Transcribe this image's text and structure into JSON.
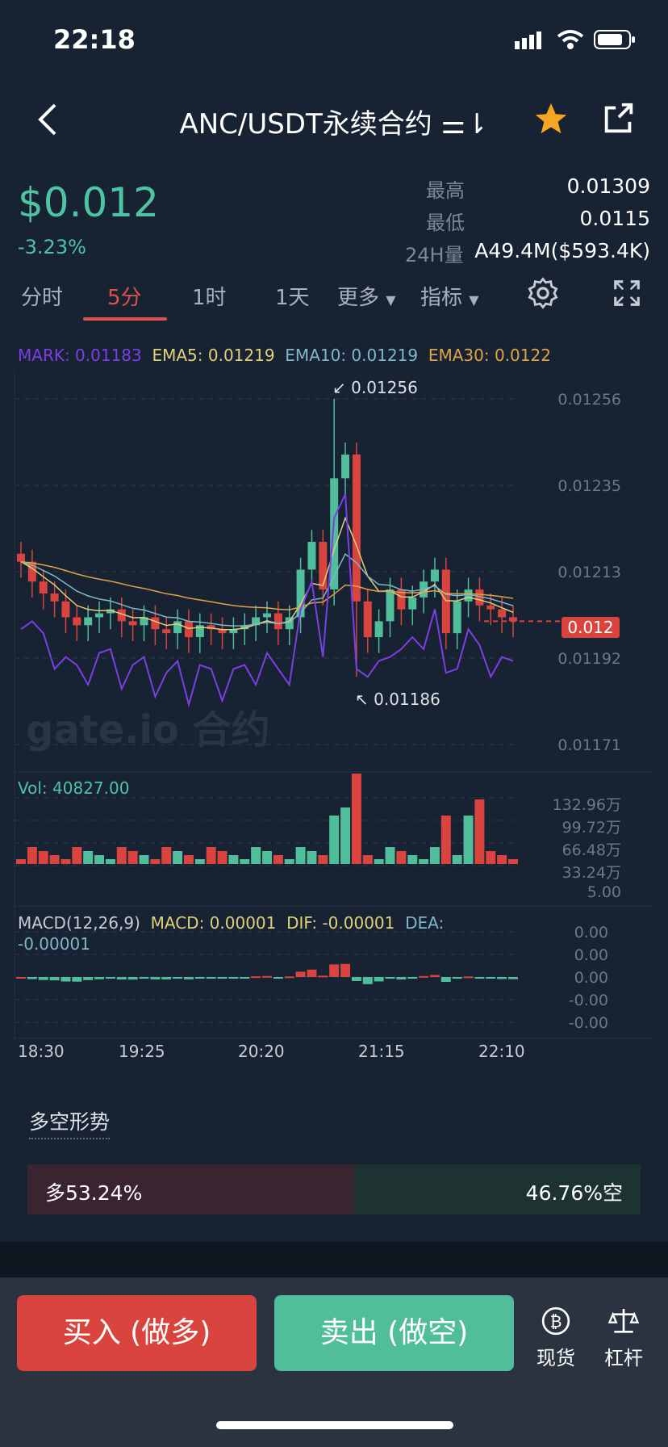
{
  "status": {
    "time": "22:18"
  },
  "header": {
    "title": "ANC/USDT永续合约 ⚌⇂"
  },
  "ticker": {
    "price": "$0.012",
    "change": "-3.23%",
    "high_label": "最高",
    "high": "0.01309",
    "low_label": "最低",
    "low": "0.0115",
    "vol_label": "24H量",
    "vol": "A49.4M($593.4K)"
  },
  "tabs": {
    "t0": "分时",
    "t1": "5分",
    "t2": "1时",
    "t3": "1天",
    "more": "更多",
    "indicator": "指标"
  },
  "legend": {
    "mark": "MARK: 0.01183",
    "ema5": "EMA5: 0.01219",
    "ema10": "EMA10: 0.01219",
    "ema30": "EMA30: 0.0122",
    "colors": {
      "mark": "#7b3fe4",
      "ema5": "#e2d07a",
      "ema10": "#7fb8c9",
      "ema30": "#e0a34a"
    }
  },
  "price_axis": {
    "ticks": [
      "0.01256",
      "0.01235",
      "0.01213",
      "0.01192",
      "0.01171"
    ],
    "current": "0.012",
    "max_label": "0.01256",
    "min_label": "0.01186"
  },
  "volume": {
    "label": "Vol: 40827.00",
    "ticks": [
      "132.96万",
      "99.72万",
      "66.48万",
      "33.24万",
      "5.00"
    ]
  },
  "macd": {
    "label": "MACD(12,26,9)",
    "macd": "MACD: 0.00001",
    "dif": "DIF: -0.00001",
    "dea_label": "DEA:",
    "dea": "-0.00001",
    "ticks": [
      "0.00",
      "0.00",
      "0.00",
      "-0.00",
      "-0.00"
    ]
  },
  "time_axis": [
    "18:30",
    "19:25",
    "20:20",
    "21:15",
    "22:10"
  ],
  "watermark": "gate.io 合约",
  "sentiment": {
    "title": "多空形势",
    "long": "多53.24%",
    "short": "46.76%空",
    "long_ratio": 0.5324
  },
  "actions": {
    "buy": "买入 (做多)",
    "sell": "卖出 (做空)",
    "spot": "现货",
    "leverage": "杠杆"
  },
  "chart_data": {
    "type": "candlestick",
    "x": [
      "18:30",
      "19:25",
      "20:20",
      "21:15",
      "22:10"
    ],
    "price_range": [
      0.01171,
      0.01256
    ],
    "high": 0.01256,
    "low": 0.01186,
    "last": 0.012,
    "candles_close": [
      0.01215,
      0.0121,
      0.01207,
      0.01205,
      0.01201,
      0.01199,
      0.01201,
      0.01202,
      0.01203,
      0.012,
      0.01199,
      0.01201,
      0.01198,
      0.01197,
      0.012,
      0.01196,
      0.01199,
      0.01198,
      0.01197,
      0.01198,
      0.01199,
      0.01201,
      0.01202,
      0.01198,
      0.01201,
      0.01213,
      0.0122,
      0.01208,
      0.01236,
      0.01242,
      0.01205,
      0.01196,
      0.012,
      0.01208,
      0.01203,
      0.01206,
      0.0121,
      0.01213,
      0.01197,
      0.01205,
      0.01208,
      0.01204,
      0.01203,
      0.01201,
      0.012
    ]
  }
}
